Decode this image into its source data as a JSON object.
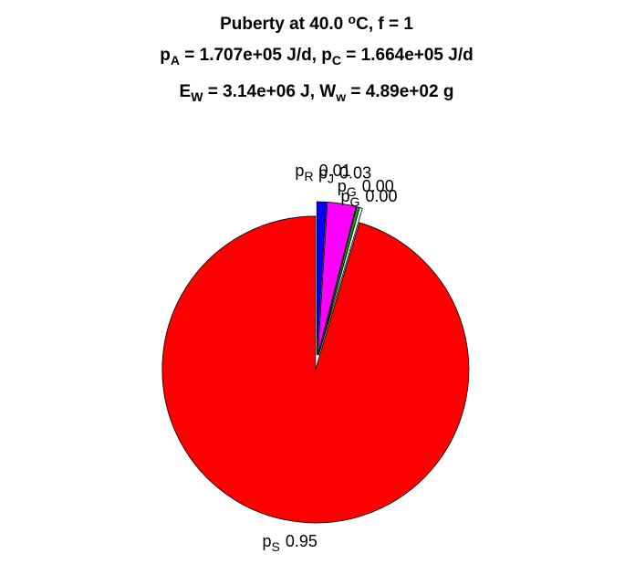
{
  "chart_data": {
    "type": "pie",
    "title": [
      [
        {
          "text": "Puberty at 40.0 "
        },
        {
          "sup": "o"
        },
        {
          "text": "C, f = 1"
        }
      ],
      [
        {
          "text": "p"
        },
        {
          "sub": "A"
        },
        {
          "text": " = 1.707e+05 J/d,  p"
        },
        {
          "sub": "C"
        },
        {
          "text": " = 1.664e+05 J/d"
        }
      ],
      [
        {
          "text": "E"
        },
        {
          "sub": "W"
        },
        {
          "text": " = 3.14e+06 J, W"
        },
        {
          "sub": "w"
        },
        {
          "text": " = 4.89e+02 g"
        }
      ]
    ],
    "categories": [
      {
        "text": "p",
        "sub": "R"
      },
      {
        "text": "p",
        "sub": "J"
      },
      {
        "text": "p",
        "sub": "G"
      },
      {
        "text": "p",
        "sub": "G"
      },
      {
        "text": "p",
        "sub": "S"
      }
    ],
    "values": [
      0.01,
      0.03,
      0.003,
      0.003,
      0.95
    ],
    "value_labels": [
      "0.01",
      "0.03",
      "0.00",
      "0.00",
      "0.95"
    ],
    "colors": [
      "#0000ff",
      "#ff00ff",
      "#00aa00",
      "#ffffff",
      "#ff0000"
    ]
  }
}
